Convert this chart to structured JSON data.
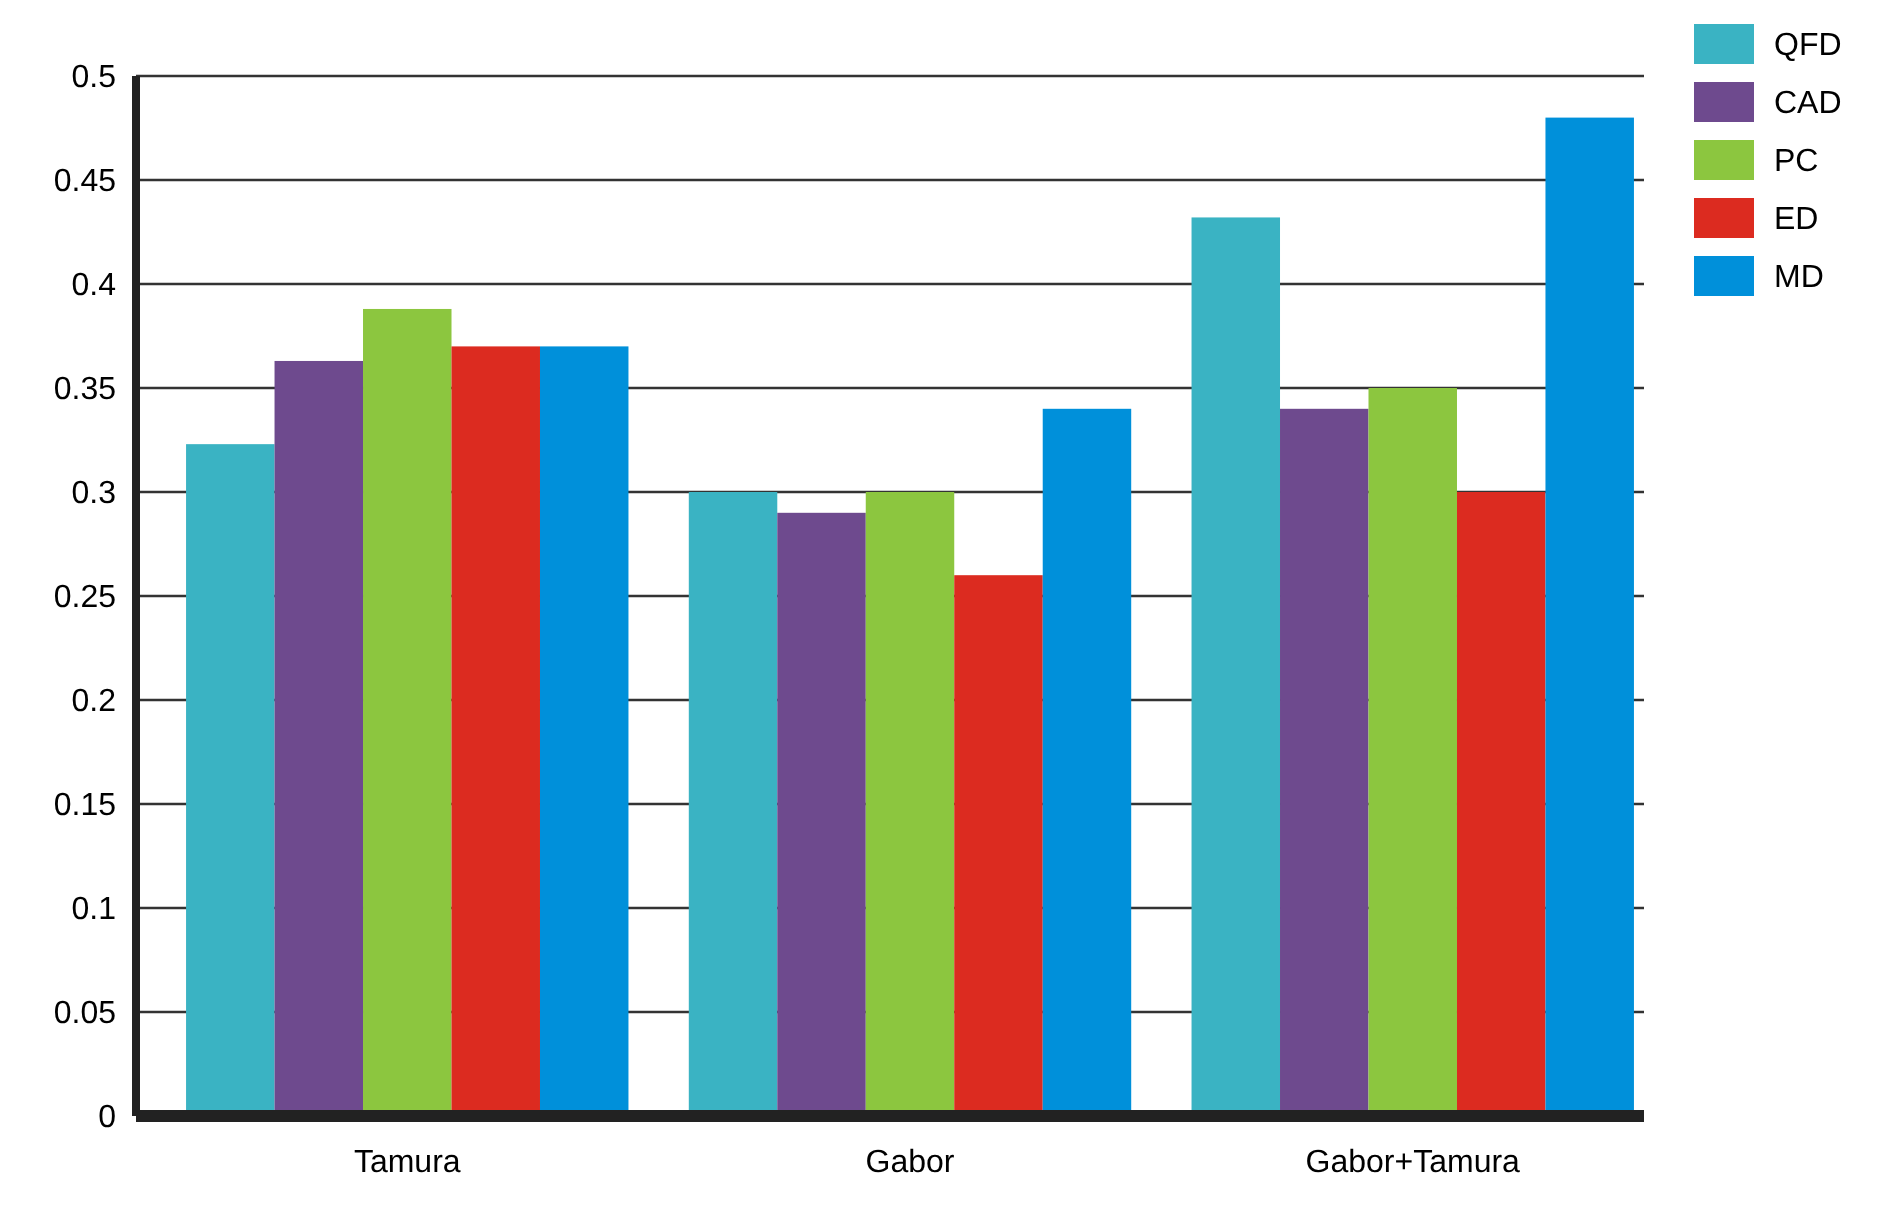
{
  "chart_data": {
    "type": "bar",
    "categories": [
      "Tamura",
      "Gabor",
      "Gabor+Tamura"
    ],
    "series": [
      {
        "name": "QFD",
        "color": "#3ab3c3",
        "values": [
          0.323,
          0.3,
          0.432
        ]
      },
      {
        "name": "CAD",
        "color": "#6e4a8e",
        "values": [
          0.363,
          0.29,
          0.34
        ]
      },
      {
        "name": "PC",
        "color": "#8cc63f",
        "values": [
          0.388,
          0.3,
          0.35
        ]
      },
      {
        "name": "ED",
        "color": "#dc2b20",
        "values": [
          0.37,
          0.26,
          0.3
        ]
      },
      {
        "name": "MD",
        "color": "#0090da",
        "values": [
          0.37,
          0.34,
          0.48
        ]
      }
    ],
    "ylim": [
      0,
      0.5
    ],
    "yticks": [
      0,
      0.05,
      0.1,
      0.15,
      0.2,
      0.25,
      0.3,
      0.35,
      0.4,
      0.45,
      0.5
    ],
    "grid": "y",
    "legend": "top right"
  }
}
